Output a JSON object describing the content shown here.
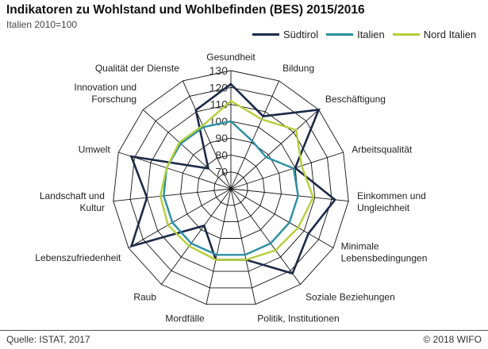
{
  "header": {
    "title": "Indikatoren zu Wohlstand und Wohlbefinden (BES) 2015/2016",
    "subtitle": "Italien 2010=100"
  },
  "footer": {
    "source": "Quelle: ISTAT, 2017",
    "copyright": "© 2018 WIFO"
  },
  "colors": {
    "suedtirol": "#1b2a48",
    "italien": "#2a8fa3",
    "nord_italien": "#b5cf3a",
    "grid": "#111111"
  },
  "chart_data": {
    "type": "radar",
    "title": "Indikatoren zu Wohlstand und Wohlbefinden (BES) 2015/2016",
    "subtitle": "Italien 2010=100",
    "categories": [
      "Gesundheit",
      "Bildung",
      "Beschäftigung",
      "Arbeitsqualität",
      "Einkommen und\nUngleichheit",
      "Minimale\nLebensbedingungen",
      "Soziale Beziehungen",
      "Politik, Institutionen",
      "Mordfälle",
      "Raub",
      "Lebenszufriedenheit",
      "Landschaft und\nKultur",
      "Umwelt",
      "Innovation und\nForschung",
      "Qualität der Dienste"
    ],
    "rlim": [
      60,
      130
    ],
    "ticks": [
      70,
      80,
      90,
      100,
      110,
      120,
      130
    ],
    "grid": true,
    "legend_position": "top-right",
    "series": [
      {
        "name": "Südtirol",
        "color": "#1b2a48",
        "values": [
          122,
          107,
          130,
          100,
          122,
          113,
          122,
          103,
          103,
          87,
          128,
          110,
          122,
          78,
          111
        ]
      },
      {
        "name": "Italien",
        "color": "#2a8fa3",
        "values": [
          100,
          91,
          88,
          99,
          100,
          100,
          100,
          100,
          100,
          100,
          100,
          100,
          100,
          100,
          100
        ]
      },
      {
        "name": "Nord Italien",
        "color": "#b5cf3a",
        "values": [
          112,
          105,
          112,
          104,
          109,
          106,
          105,
          103,
          103,
          102,
          103,
          102,
          100,
          101,
          101
        ]
      }
    ]
  }
}
